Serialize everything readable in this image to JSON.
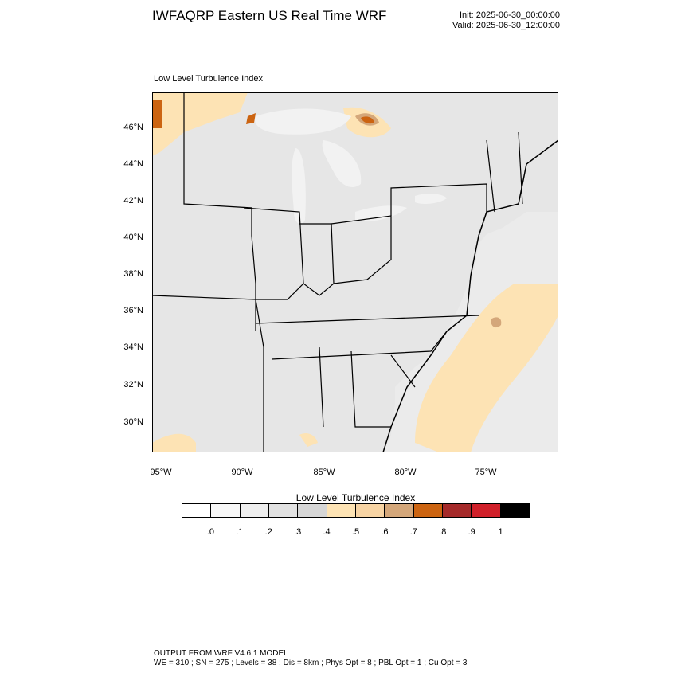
{
  "header": {
    "title": "IWFAQRP Eastern US Real Time WRF",
    "init": "Init: 2025-06-30_00:00:00",
    "valid": "Valid: 2025-06-30_12:00:00"
  },
  "map": {
    "caption": "Low Level Turbulence Index",
    "lat_labels": [
      "46°N",
      "44°N",
      "42°N",
      "40°N",
      "38°N",
      "36°N",
      "34°N",
      "32°N",
      "30°N"
    ],
    "lon_labels": [
      "95°W",
      "90°W",
      "85°W",
      "80°W",
      "75°W"
    ],
    "colors": {
      "land_background": "#e8e8e8",
      "ocean": "#ececec",
      "lake": "#f4f4f4",
      "low": "#d9d9d9",
      "moderate": "#fde3b4",
      "high": "#d4a77a",
      "very_high": "#cc6411",
      "boundary": "#000000"
    }
  },
  "legend": {
    "title": "Low Level Turbulence Index",
    "colors": [
      "#ffffff",
      "#f7f7f7",
      "#eeeeee",
      "#e1e1e1",
      "#d6d6d6",
      "#fde3b4",
      "#f7d4a4",
      "#d4a77a",
      "#cc6411",
      "#a52a2a",
      "#d0202a",
      "#000000"
    ],
    "labels": [
      ".0",
      ".1",
      ".2",
      ".3",
      ".4",
      ".5",
      ".6",
      ".7",
      ".8",
      ".9",
      "1"
    ]
  },
  "footer": {
    "line1": "OUTPUT FROM WRF V4.6.1 MODEL",
    "line2": "WE = 310 ; SN = 275 ; Levels = 38 ; Dis = 8km ; Phys Opt = 8 ; PBL Opt = 1 ; Cu Opt = 3"
  }
}
